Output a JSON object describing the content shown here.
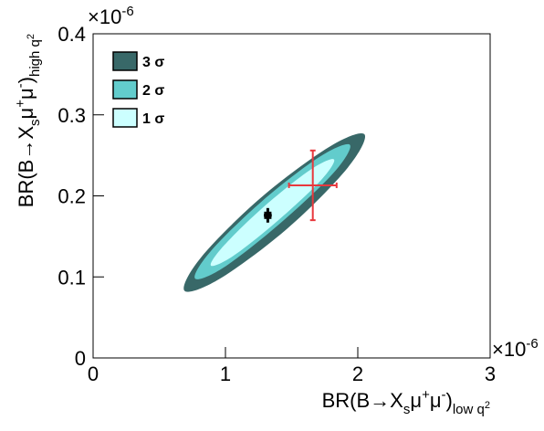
{
  "chart_data": {
    "type": "contour",
    "xlabel": [
      {
        "text": "BR(B→X"
      },
      {
        "text": "s",
        "shift": "sub"
      },
      {
        "text": "μ"
      },
      {
        "text": "+",
        "shift": "sup"
      },
      {
        "text": "μ"
      },
      {
        "text": "-",
        "shift": "sup"
      },
      {
        "text": ")"
      },
      {
        "text": "low q",
        "shift": "sub"
      },
      {
        "text": "2",
        "shift": "subsup"
      }
    ],
    "ylabel": [
      {
        "text": "BR(B→X"
      },
      {
        "text": "s",
        "shift": "sub"
      },
      {
        "text": "μ"
      },
      {
        "text": "+",
        "shift": "sup"
      },
      {
        "text": "μ"
      },
      {
        "text": "-",
        "shift": "sup"
      },
      {
        "text": ")"
      },
      {
        "text": "high q",
        "shift": "sub"
      },
      {
        "text": "2",
        "shift": "subsup"
      }
    ],
    "xmultiplier": [
      {
        "text": "×10"
      },
      {
        "text": "-6",
        "shift": "sup"
      }
    ],
    "ymultiplier": [
      {
        "text": "×10"
      },
      {
        "text": "-6",
        "shift": "sup"
      }
    ],
    "xlim": [
      0,
      3
    ],
    "xticks": [
      0,
      1,
      2,
      3
    ],
    "ylim": [
      0,
      0.4
    ],
    "yticks": [
      0,
      0.1,
      0.2,
      0.3,
      0.4
    ],
    "legend": "top-left",
    "series": [
      {
        "name": "3 σ",
        "color": "#386868",
        "x": [
          2.05,
          1.92,
          1.47,
          0.96,
          0.69,
          0.82,
          1.27,
          1.78
        ],
        "y": [
          0.276,
          0.234,
          0.16,
          0.098,
          0.083,
          0.125,
          0.198,
          0.26
        ]
      },
      {
        "name": "2 σ",
        "color": "#62cccc",
        "x": [
          1.94,
          1.82,
          1.42,
          0.99,
          0.77,
          0.89,
          1.28,
          1.71
        ],
        "y": [
          0.263,
          0.229,
          0.167,
          0.112,
          0.098,
          0.132,
          0.194,
          0.248
        ]
      },
      {
        "name": "1 σ",
        "color": "#ccffff",
        "x": [
          1.82,
          1.72,
          1.4,
          1.06,
          0.89,
          0.99,
          1.3,
          1.64
        ],
        "y": [
          0.245,
          0.219,
          0.17,
          0.126,
          0.114,
          0.139,
          0.188,
          0.232
        ]
      }
    ],
    "points": [
      {
        "color": "#000000",
        "x": 1.32,
        "y": 0.176,
        "xerr": 0.03,
        "yerr": 0.009
      },
      {
        "color": "#e8383d",
        "x": 1.66,
        "y": 0.213,
        "xerr": 0.18,
        "yerr": 0.043
      }
    ]
  }
}
